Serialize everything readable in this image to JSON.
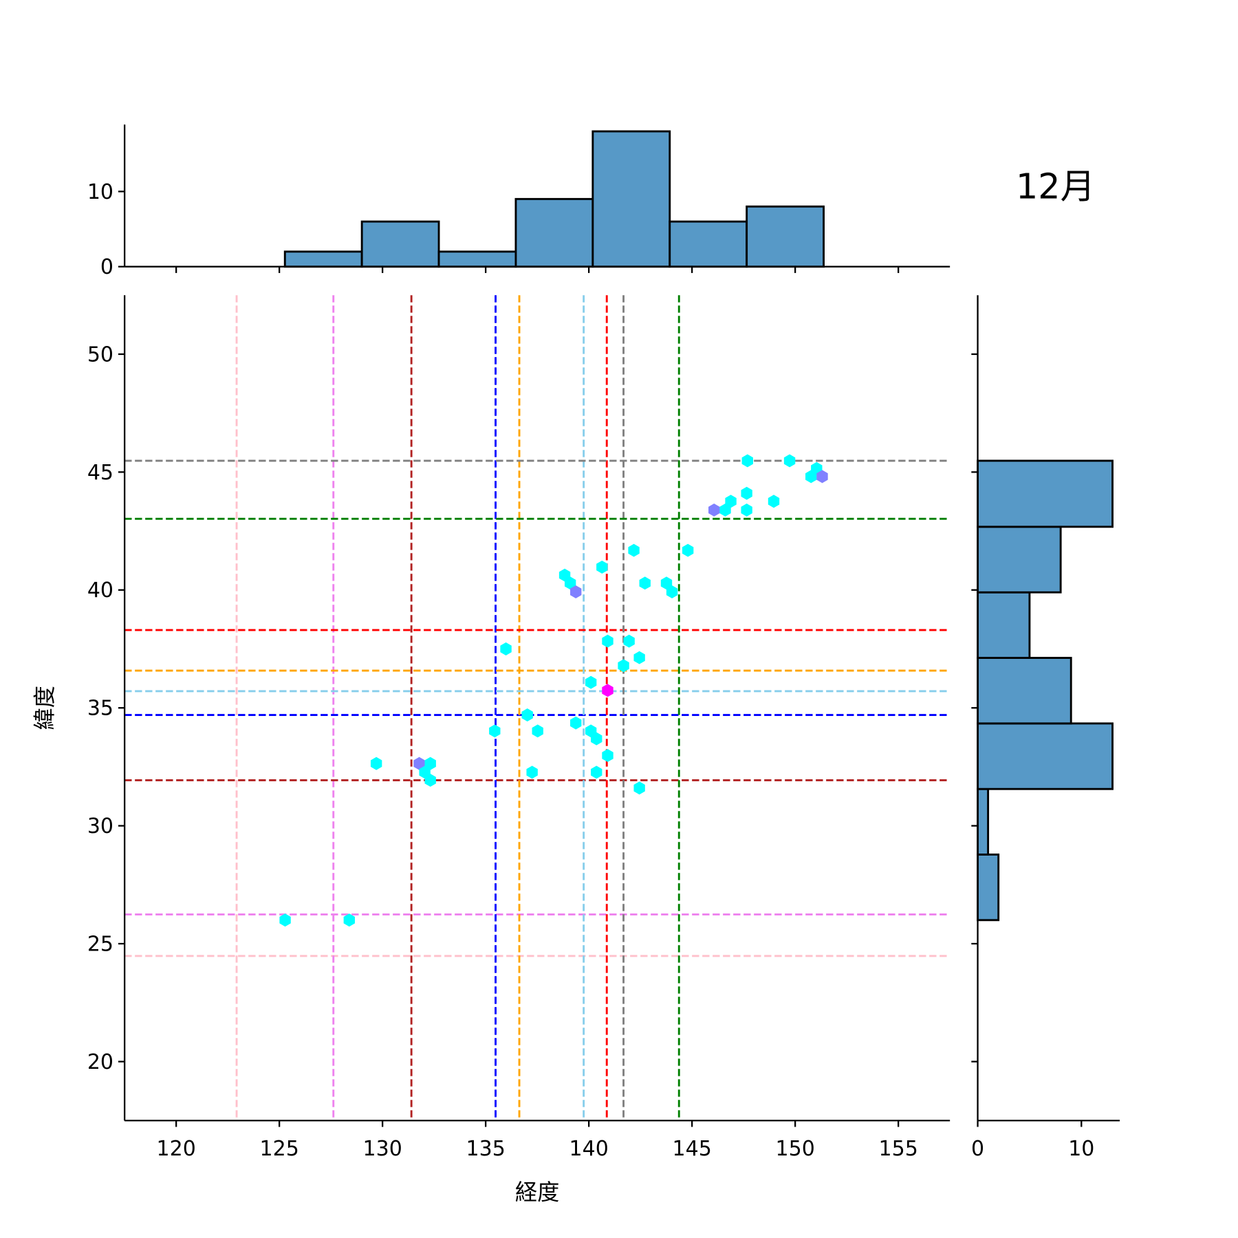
{
  "chart_data": {
    "type": "scatter",
    "subtype": "hexbin-jointplot",
    "title": "12月",
    "xlabel": "経度",
    "ylabel": "緯度",
    "xlim": [
      117.5,
      157.5
    ],
    "ylim": [
      17.5,
      52.5
    ],
    "xticks": [
      120,
      125,
      130,
      135,
      140,
      145,
      150,
      155
    ],
    "yticks": [
      20,
      25,
      30,
      35,
      40,
      45,
      50
    ],
    "hexbins": [
      {
        "x": 147.69,
        "y": 45.48,
        "count": 1
      },
      {
        "x": 149.73,
        "y": 45.48,
        "count": 1
      },
      {
        "x": 151.04,
        "y": 45.15,
        "count": 1
      },
      {
        "x": 150.77,
        "y": 44.81,
        "count": 1
      },
      {
        "x": 151.31,
        "y": 44.81,
        "count": 2
      },
      {
        "x": 147.65,
        "y": 44.1,
        "count": 1
      },
      {
        "x": 146.88,
        "y": 43.76,
        "count": 1
      },
      {
        "x": 148.96,
        "y": 43.76,
        "count": 1
      },
      {
        "x": 146.61,
        "y": 43.39,
        "count": 1
      },
      {
        "x": 147.65,
        "y": 43.39,
        "count": 1
      },
      {
        "x": 146.07,
        "y": 43.39,
        "count": 2
      },
      {
        "x": 142.18,
        "y": 41.68,
        "count": 1
      },
      {
        "x": 144.8,
        "y": 41.68,
        "count": 1
      },
      {
        "x": 140.64,
        "y": 40.97,
        "count": 1
      },
      {
        "x": 138.83,
        "y": 40.63,
        "count": 1
      },
      {
        "x": 139.1,
        "y": 40.29,
        "count": 1
      },
      {
        "x": 139.37,
        "y": 39.92,
        "count": 2
      },
      {
        "x": 142.72,
        "y": 40.29,
        "count": 1
      },
      {
        "x": 143.76,
        "y": 40.29,
        "count": 1
      },
      {
        "x": 144.03,
        "y": 39.92,
        "count": 1
      },
      {
        "x": 140.91,
        "y": 37.83,
        "count": 1
      },
      {
        "x": 141.95,
        "y": 37.83,
        "count": 1
      },
      {
        "x": 135.98,
        "y": 37.5,
        "count": 1
      },
      {
        "x": 142.45,
        "y": 37.13,
        "count": 1
      },
      {
        "x": 141.68,
        "y": 36.79,
        "count": 1
      },
      {
        "x": 140.1,
        "y": 36.08,
        "count": 1
      },
      {
        "x": 140.91,
        "y": 35.74,
        "count": 3
      },
      {
        "x": 137.02,
        "y": 34.7,
        "count": 1
      },
      {
        "x": 139.37,
        "y": 34.36,
        "count": 1
      },
      {
        "x": 135.44,
        "y": 34.02,
        "count": 1
      },
      {
        "x": 137.52,
        "y": 34.02,
        "count": 1
      },
      {
        "x": 140.1,
        "y": 34.02,
        "count": 1
      },
      {
        "x": 140.37,
        "y": 33.69,
        "count": 1
      },
      {
        "x": 140.91,
        "y": 32.98,
        "count": 1
      },
      {
        "x": 129.7,
        "y": 32.64,
        "count": 1
      },
      {
        "x": 131.78,
        "y": 32.64,
        "count": 2
      },
      {
        "x": 132.32,
        "y": 32.64,
        "count": 1
      },
      {
        "x": 132.05,
        "y": 32.27,
        "count": 1
      },
      {
        "x": 132.32,
        "y": 31.93,
        "count": 1
      },
      {
        "x": 137.25,
        "y": 32.27,
        "count": 1
      },
      {
        "x": 140.37,
        "y": 32.27,
        "count": 1
      },
      {
        "x": 142.45,
        "y": 31.6,
        "count": 1
      },
      {
        "x": 125.28,
        "y": 26.0,
        "count": 1
      },
      {
        "x": 128.39,
        "y": 26.0,
        "count": 1
      }
    ],
    "count_colors": {
      "1": "#00ffff",
      "2": "#8080ff",
      "3": "#ff00ff"
    },
    "reference_lines": [
      {
        "color": "#ffc0cb",
        "x": 122.93,
        "y": 24.48
      },
      {
        "color": "#ee82ee",
        "x": 127.62,
        "y": 26.24
      },
      {
        "color": "#b22222",
        "x": 131.4,
        "y": 31.93
      },
      {
        "color": "#0000ff",
        "x": 135.48,
        "y": 34.7
      },
      {
        "color": "#ffa500",
        "x": 136.63,
        "y": 36.58
      },
      {
        "color": "#87ceeb",
        "x": 139.75,
        "y": 35.71
      },
      {
        "color": "#ff0000",
        "x": 140.87,
        "y": 38.3
      },
      {
        "color": "#808080",
        "x": 141.68,
        "y": 45.48
      },
      {
        "color": "#008000",
        "x": 144.37,
        "y": 43.02
      }
    ],
    "top_histogram": {
      "bin_edges": [
        125.27,
        129.0,
        132.73,
        136.46,
        140.19,
        143.92,
        147.65,
        151.38
      ],
      "counts": [
        2,
        6,
        2,
        9,
        18,
        6,
        8
      ],
      "yticks": [
        0,
        10
      ],
      "ylim": [
        0,
        18.9
      ]
    },
    "right_histogram": {
      "bin_edges": [
        26.0,
        28.78,
        31.56,
        34.34,
        37.12,
        39.9,
        42.68,
        45.48
      ],
      "counts": [
        2,
        1,
        13,
        9,
        5,
        8,
        13
      ],
      "xticks": [
        0,
        10
      ],
      "xlim": [
        0,
        13.7
      ]
    },
    "bar_color": "#5799c7"
  }
}
